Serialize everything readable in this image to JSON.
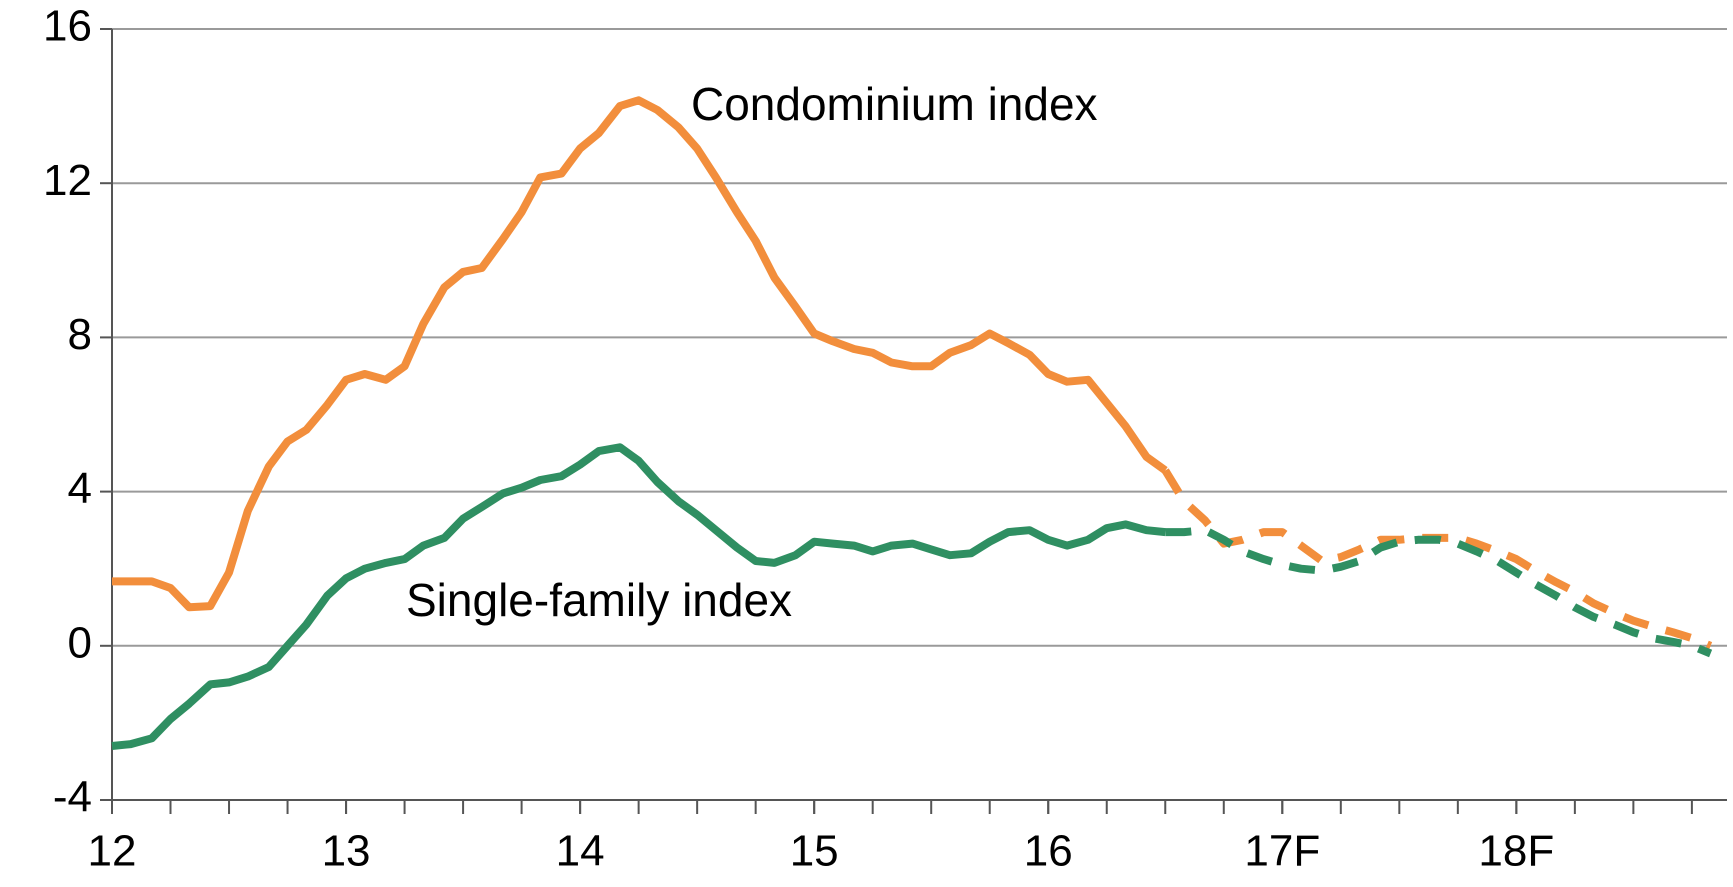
{
  "chart_data": {
    "type": "line",
    "x": [
      12,
      12.08,
      12.17,
      12.25,
      12.33,
      12.42,
      12.5,
      12.58,
      12.67,
      12.75,
      12.83,
      12.92,
      13,
      13.08,
      13.17,
      13.25,
      13.33,
      13.42,
      13.5,
      13.58,
      13.67,
      13.75,
      13.83,
      13.92,
      14,
      14.08,
      14.17,
      14.25,
      14.33,
      14.42,
      14.5,
      14.58,
      14.67,
      14.75,
      14.83,
      14.92,
      15,
      15.08,
      15.17,
      15.25,
      15.33,
      15.42,
      15.5,
      15.58,
      15.67,
      15.75,
      15.83,
      15.92,
      16,
      16.08,
      16.17,
      16.25,
      16.33,
      16.42,
      16.5,
      16.58,
      16.67,
      16.75,
      16.83,
      16.92,
      17,
      17.08,
      17.17,
      17.25,
      17.33,
      17.42,
      17.5,
      17.58,
      17.67,
      17.75,
      17.83,
      17.92,
      18,
      18.08,
      18.17,
      18.25,
      18.33,
      18.42,
      18.5,
      18.58,
      18.67,
      18.75,
      18.83
    ],
    "series": [
      {
        "name": "Condominium index",
        "color": "#f28e3c",
        "values": [
          1.67,
          1.67,
          1.67,
          1.5,
          1.0,
          1.03,
          1.9,
          3.5,
          4.65,
          5.3,
          5.6,
          6.25,
          6.9,
          7.05,
          6.9,
          7.25,
          8.35,
          9.3,
          9.7,
          9.8,
          10.55,
          11.25,
          12.15,
          12.25,
          12.9,
          13.3,
          14.0,
          14.15,
          13.9,
          13.45,
          12.9,
          12.15,
          11.25,
          10.5,
          9.55,
          8.8,
          8.1,
          7.9,
          7.7,
          7.6,
          7.35,
          7.25,
          7.25,
          7.6,
          7.8,
          8.1,
          7.85,
          7.55,
          7.05,
          6.85,
          6.9,
          6.3,
          5.7,
          4.9,
          4.55,
          3.75,
          3.25,
          2.65,
          2.75,
          2.95,
          2.95,
          2.6,
          2.2,
          2.3,
          2.5,
          2.75,
          2.75,
          2.8,
          2.8,
          2.8,
          2.65,
          2.45,
          2.25,
          1.95,
          1.65,
          1.4,
          1.1,
          0.85,
          0.65,
          0.5,
          0.35,
          0.2,
          0.0
        ]
      },
      {
        "name": "Single-family index",
        "color": "#2f8f62",
        "values": [
          -2.6,
          -2.55,
          -2.4,
          -1.9,
          -1.5,
          -1.0,
          -0.95,
          -0.8,
          -0.55,
          0.0,
          0.55,
          1.3,
          1.75,
          2.0,
          2.15,
          2.25,
          2.6,
          2.8,
          3.3,
          3.6,
          3.95,
          4.1,
          4.3,
          4.4,
          4.7,
          5.05,
          5.15,
          4.8,
          4.25,
          3.75,
          3.4,
          3.0,
          2.55,
          2.2,
          2.15,
          2.35,
          2.7,
          2.65,
          2.6,
          2.45,
          2.6,
          2.65,
          2.5,
          2.35,
          2.4,
          2.7,
          2.95,
          3.0,
          2.75,
          2.6,
          2.75,
          3.05,
          3.15,
          3.0,
          2.95,
          2.95,
          3.0,
          2.75,
          2.45,
          2.25,
          2.1,
          2.0,
          1.95,
          2.05,
          2.2,
          2.55,
          2.7,
          2.75,
          2.75,
          2.65,
          2.45,
          2.2,
          1.9,
          1.6,
          1.3,
          1.0,
          0.75,
          0.55,
          0.35,
          0.2,
          0.1,
          0.0,
          -0.2
        ]
      }
    ],
    "forecast_from": 16.5,
    "xlim": [
      12,
      18.9
    ],
    "xticks": [
      12,
      13,
      14,
      15,
      16,
      {
        "value": 17,
        "label": "17F"
      },
      {
        "value": 18,
        "label": "18F"
      }
    ],
    "xminor_step": 0.25,
    "ylim": [
      -4,
      16
    ],
    "yticks": [
      -4,
      0,
      4,
      8,
      12,
      16
    ],
    "grid": true
  }
}
